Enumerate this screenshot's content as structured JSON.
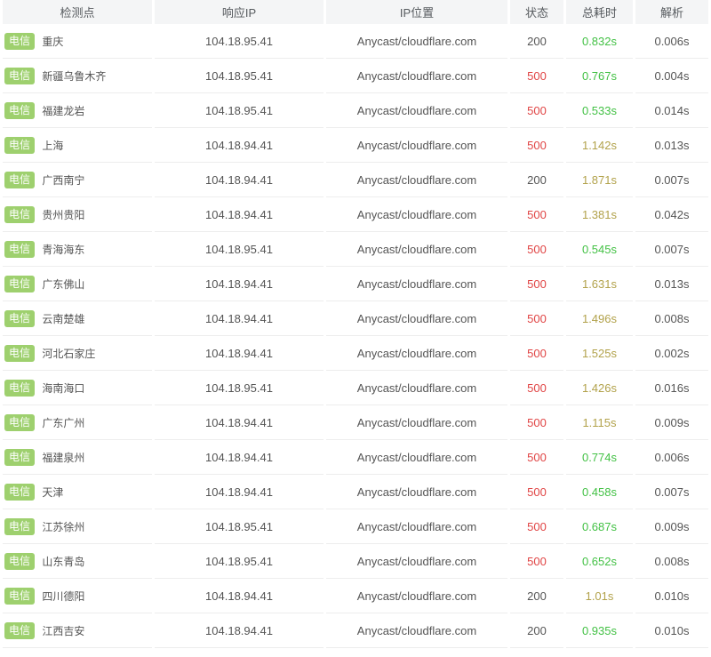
{
  "colors": {
    "badge_green": "#9ed06e",
    "status_red": "#e04444",
    "time_green": "#43c145",
    "time_yellow": "#b2a24b",
    "text": "#555555",
    "header_bg": "#f4f5f6",
    "row_border": "#ededed"
  },
  "table": {
    "headers": [
      {
        "label": "检测点"
      },
      {
        "label": "响应IP"
      },
      {
        "label": "IP位置"
      },
      {
        "label": "状态"
      },
      {
        "label": "总耗时"
      },
      {
        "label": "解析"
      }
    ],
    "rows": [
      {
        "isp": "电信",
        "node": "重庆",
        "ip": "104.18.95.41",
        "location": "Anycast/cloudflare.com",
        "status": "200",
        "status_color": "normal",
        "total_time": "0.832s",
        "time_color": "green",
        "resolve": "0.006s"
      },
      {
        "isp": "电信",
        "node": "新疆乌鲁木齐",
        "ip": "104.18.95.41",
        "location": "Anycast/cloudflare.com",
        "status": "500",
        "status_color": "red",
        "total_time": "0.767s",
        "time_color": "green",
        "resolve": "0.004s"
      },
      {
        "isp": "电信",
        "node": "福建龙岩",
        "ip": "104.18.95.41",
        "location": "Anycast/cloudflare.com",
        "status": "500",
        "status_color": "red",
        "total_time": "0.533s",
        "time_color": "green",
        "resolve": "0.014s"
      },
      {
        "isp": "电信",
        "node": "上海",
        "ip": "104.18.94.41",
        "location": "Anycast/cloudflare.com",
        "status": "500",
        "status_color": "red",
        "total_time": "1.142s",
        "time_color": "yellow",
        "resolve": "0.013s"
      },
      {
        "isp": "电信",
        "node": "广西南宁",
        "ip": "104.18.94.41",
        "location": "Anycast/cloudflare.com",
        "status": "200",
        "status_color": "normal",
        "total_time": "1.871s",
        "time_color": "yellow",
        "resolve": "0.007s"
      },
      {
        "isp": "电信",
        "node": "贵州贵阳",
        "ip": "104.18.94.41",
        "location": "Anycast/cloudflare.com",
        "status": "500",
        "status_color": "red",
        "total_time": "1.381s",
        "time_color": "yellow",
        "resolve": "0.042s"
      },
      {
        "isp": "电信",
        "node": "青海海东",
        "ip": "104.18.95.41",
        "location": "Anycast/cloudflare.com",
        "status": "500",
        "status_color": "red",
        "total_time": "0.545s",
        "time_color": "green",
        "resolve": "0.007s"
      },
      {
        "isp": "电信",
        "node": "广东佛山",
        "ip": "104.18.94.41",
        "location": "Anycast/cloudflare.com",
        "status": "500",
        "status_color": "red",
        "total_time": "1.631s",
        "time_color": "yellow",
        "resolve": "0.013s"
      },
      {
        "isp": "电信",
        "node": "云南楚雄",
        "ip": "104.18.94.41",
        "location": "Anycast/cloudflare.com",
        "status": "500",
        "status_color": "red",
        "total_time": "1.496s",
        "time_color": "yellow",
        "resolve": "0.008s"
      },
      {
        "isp": "电信",
        "node": "河北石家庄",
        "ip": "104.18.94.41",
        "location": "Anycast/cloudflare.com",
        "status": "500",
        "status_color": "red",
        "total_time": "1.525s",
        "time_color": "yellow",
        "resolve": "0.002s"
      },
      {
        "isp": "电信",
        "node": "海南海口",
        "ip": "104.18.95.41",
        "location": "Anycast/cloudflare.com",
        "status": "500",
        "status_color": "red",
        "total_time": "1.426s",
        "time_color": "yellow",
        "resolve": "0.016s"
      },
      {
        "isp": "电信",
        "node": "广东广州",
        "ip": "104.18.94.41",
        "location": "Anycast/cloudflare.com",
        "status": "500",
        "status_color": "red",
        "total_time": "1.115s",
        "time_color": "yellow",
        "resolve": "0.009s"
      },
      {
        "isp": "电信",
        "node": "福建泉州",
        "ip": "104.18.94.41",
        "location": "Anycast/cloudflare.com",
        "status": "500",
        "status_color": "red",
        "total_time": "0.774s",
        "time_color": "green",
        "resolve": "0.006s"
      },
      {
        "isp": "电信",
        "node": "天津",
        "ip": "104.18.94.41",
        "location": "Anycast/cloudflare.com",
        "status": "500",
        "status_color": "red",
        "total_time": "0.458s",
        "time_color": "green",
        "resolve": "0.007s"
      },
      {
        "isp": "电信",
        "node": "江苏徐州",
        "ip": "104.18.95.41",
        "location": "Anycast/cloudflare.com",
        "status": "500",
        "status_color": "red",
        "total_time": "0.687s",
        "time_color": "green",
        "resolve": "0.009s"
      },
      {
        "isp": "电信",
        "node": "山东青岛",
        "ip": "104.18.95.41",
        "location": "Anycast/cloudflare.com",
        "status": "500",
        "status_color": "red",
        "total_time": "0.652s",
        "time_color": "green",
        "resolve": "0.008s"
      },
      {
        "isp": "电信",
        "node": "四川德阳",
        "ip": "104.18.94.41",
        "location": "Anycast/cloudflare.com",
        "status": "200",
        "status_color": "normal",
        "total_time": "1.01s",
        "time_color": "yellow",
        "resolve": "0.010s"
      },
      {
        "isp": "电信",
        "node": "江西吉安",
        "ip": "104.18.94.41",
        "location": "Anycast/cloudflare.com",
        "status": "200",
        "status_color": "normal",
        "total_time": "0.935s",
        "time_color": "green",
        "resolve": "0.010s"
      }
    ]
  }
}
